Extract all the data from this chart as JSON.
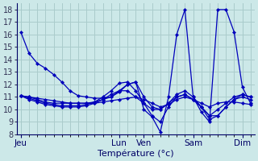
{
  "xlabel": "Température (°c)",
  "bg_color": "#cce8e8",
  "grid_color": "#aacccc",
  "line_color": "#0000bb",
  "ylim": [
    8,
    18.5
  ],
  "ytick_step": 1,
  "yticks": [
    8,
    9,
    10,
    11,
    12,
    13,
    14,
    15,
    16,
    17,
    18
  ],
  "n_points": 29,
  "day_positions": [
    0,
    12,
    15,
    21,
    27
  ],
  "day_labels": [
    "Jeu",
    "Lun",
    "Ven",
    "Sam",
    "Dim"
  ],
  "series": [
    [
      16.2,
      14.5,
      13.7,
      13.3,
      12.8,
      12.2,
      11.5,
      11.1,
      11.0,
      10.9,
      10.9,
      11.0,
      11.4,
      12.0,
      12.2,
      10.0,
      9.4,
      8.2,
      11.0,
      16.0,
      18.0,
      11.0,
      9.8,
      9.0,
      18.0,
      18.0,
      16.2,
      11.8,
      10.5
    ],
    [
      11.1,
      11.0,
      10.9,
      10.8,
      10.7,
      10.6,
      10.5,
      10.5,
      10.5,
      10.5,
      10.6,
      10.7,
      10.8,
      10.9,
      11.0,
      10.8,
      10.5,
      10.2,
      10.4,
      10.8,
      11.0,
      10.8,
      10.5,
      10.2,
      10.5,
      10.6,
      10.6,
      10.5,
      10.4
    ],
    [
      11.1,
      11.0,
      10.8,
      10.6,
      10.5,
      10.5,
      10.5,
      10.5,
      10.5,
      10.6,
      10.8,
      11.0,
      11.5,
      12.0,
      12.2,
      11.0,
      10.2,
      10.0,
      10.5,
      11.0,
      11.2,
      10.8,
      10.2,
      9.5,
      10.0,
      10.5,
      11.0,
      11.2,
      11.0
    ],
    [
      11.1,
      10.9,
      10.7,
      10.5,
      10.4,
      10.3,
      10.3,
      10.3,
      10.4,
      10.6,
      11.0,
      11.5,
      12.1,
      12.2,
      11.5,
      10.5,
      9.5,
      9.0,
      10.2,
      11.0,
      11.2,
      10.8,
      10.2,
      9.5,
      9.5,
      10.2,
      10.8,
      11.0,
      10.8
    ],
    [
      11.1,
      10.8,
      10.6,
      10.4,
      10.3,
      10.2,
      10.2,
      10.2,
      10.3,
      10.5,
      10.8,
      11.2,
      11.5,
      11.5,
      11.0,
      10.5,
      10.0,
      10.0,
      10.5,
      11.2,
      11.5,
      11.0,
      10.2,
      9.2,
      9.5,
      10.2,
      10.8,
      11.2,
      11.0
    ]
  ]
}
